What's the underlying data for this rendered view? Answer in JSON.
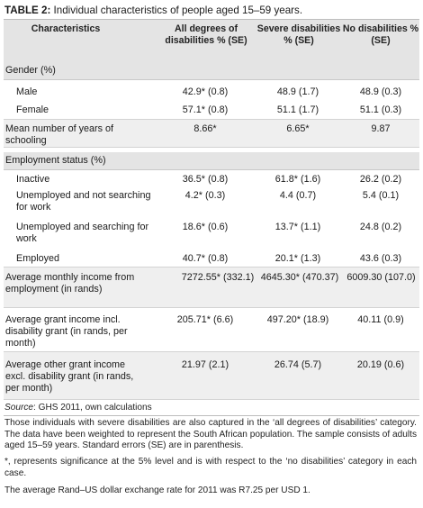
{
  "table": {
    "label": "TABLE 2:",
    "caption": "Individual characteristics of people aged 15–59 years.",
    "columns": [
      "Characteristics",
      "All degrees of disabilities % (SE)",
      "Severe disabilities % (SE)",
      "No disabilities % (SE)"
    ],
    "sections": {
      "gender": {
        "heading": "Gender (%)",
        "rows": [
          {
            "label": "Male",
            "values": [
              "42.9* (0.8)",
              "48.9 (1.7)",
              "48.9 (0.3)"
            ]
          },
          {
            "label": "Female",
            "values": [
              "57.1* (0.8)",
              "51.1 (1.7)",
              "51.1 (0.3)"
            ]
          }
        ]
      },
      "schooling": {
        "label": "Mean number of years of schooling",
        "values": [
          "8.66*",
          "6.65*",
          "9.87"
        ]
      },
      "employment": {
        "heading": "Employment status (%)",
        "rows": [
          {
            "label": "Inactive",
            "values": [
              "36.5* (0.8)",
              "61.8* (1.6)",
              "26.2 (0.2)"
            ]
          },
          {
            "label": "Unemployed and not searching for work",
            "values": [
              "4.2* (0.3)",
              "4.4 (0.7)",
              "5.4 (0.1)"
            ]
          },
          {
            "label": "Unemployed and searching for work",
            "values": [
              "18.6* (0.6)",
              "13.7* (1.1)",
              "24.8 (0.2)"
            ]
          },
          {
            "label": "Employed",
            "values": [
              "40.7* (0.8)",
              "20.1* (1.3)",
              "43.6 (0.3)"
            ]
          }
        ]
      },
      "income": [
        {
          "label": "Average monthly income from employment (in rands)",
          "values": [
            "7272.55* (332.1)",
            "4645.30* (470.37)",
            "6009.30 (107.0)"
          ]
        },
        {
          "label": "Average grant income incl. disability grant (in rands, per month)",
          "values": [
            "205.71* (6.6)",
            "497.20* (18.9)",
            "40.11 (0.9)"
          ]
        },
        {
          "label": "Average other grant income excl. disability grant (in rands, per month)",
          "values": [
            "21.97 (2.1)",
            "26.74 (5.7)",
            "20.19 (0.6)"
          ]
        }
      ]
    }
  },
  "notes": {
    "source_label": "Source",
    "source_text": ": GHS 2011, own calculations",
    "note1": "Those individuals with severe disabilities are also captured in the ‘all degrees of disabilities’ category. The data have been weighted to represent the South African population. The sample consists of adults aged 15–59 years. Standard errors (SE) are in parenthesis.",
    "note2": "*, represents significance at the 5% level and is with respect to the ‘no disabilities’ category in each case.",
    "note3": "The average Rand–US dollar exchange rate for 2011 was R7.25 per USD 1."
  }
}
